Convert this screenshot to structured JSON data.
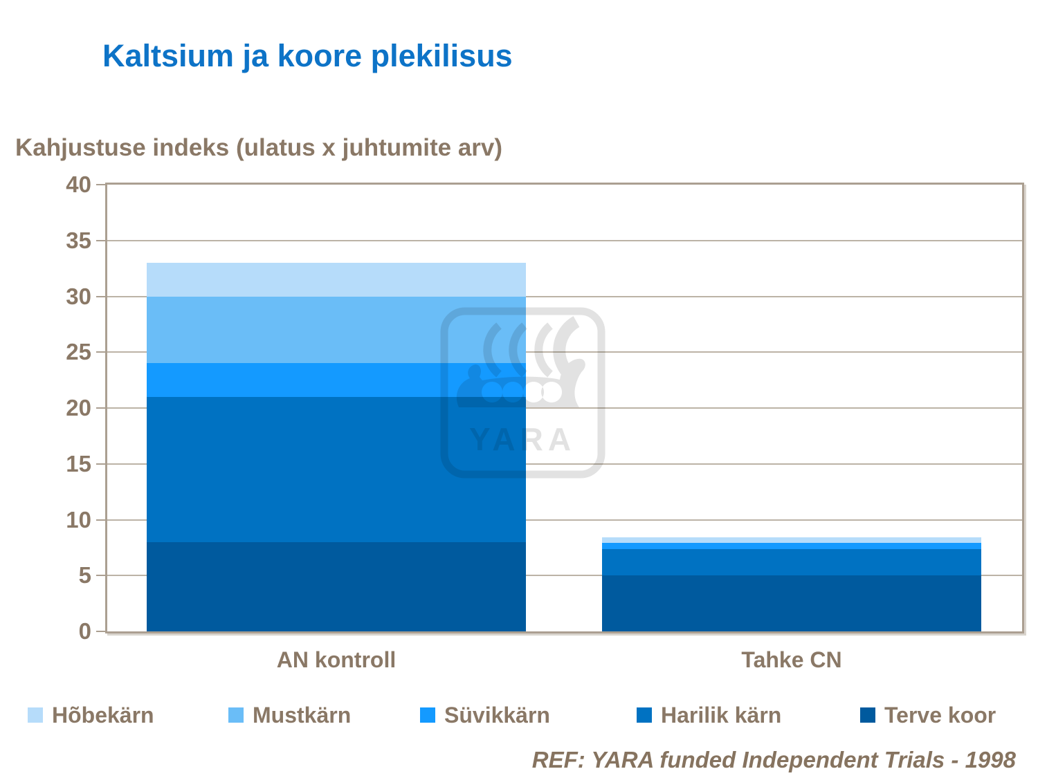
{
  "title": "Kaltsium ja koore plekilisus",
  "y_axis_title": "Kahjustuse indeks (ulatus x juhtumite arv)",
  "reference": "REF: YARA funded Independent Trials - 1998",
  "watermark_text": "YARA",
  "colors": {
    "title": "#0d73c7",
    "label_brown": "#8a7866",
    "axis_line": "#ab9f91",
    "gridline": "#bcb3a6",
    "watermark_gray": "#e2e2e2"
  },
  "chart_data": {
    "type": "bar",
    "stacked": true,
    "title": "Kaltsium ja koore plekilisus",
    "ylabel": "Kahjustuse indeks (ulatus x juhtumite arv)",
    "categories": [
      "AN kontroll",
      "Tahke CN"
    ],
    "series": [
      {
        "name": "Terve koor",
        "color": "#005a9e",
        "values": [
          8,
          5
        ]
      },
      {
        "name": "Harilik kärn",
        "color": "#0072c2",
        "values": [
          13,
          2.4
        ]
      },
      {
        "name": "Süvikkärn",
        "color": "#149aff",
        "values": [
          3,
          0.5
        ]
      },
      {
        "name": "Mustkärn",
        "color": "#6abdf7",
        "values": [
          6,
          0
        ]
      },
      {
        "name": "Hõbekärn",
        "color": "#b6dcfa",
        "values": [
          3,
          0.5
        ]
      }
    ],
    "totals": [
      33,
      8.4
    ],
    "ylim": [
      0,
      40
    ],
    "ytick_step": 5,
    "grid": true,
    "legend_position": "bottom",
    "legend_order": [
      "Hõbekärn",
      "Mustkärn",
      "Süvikkärn",
      "Harilik kärn",
      "Terve koor"
    ]
  }
}
